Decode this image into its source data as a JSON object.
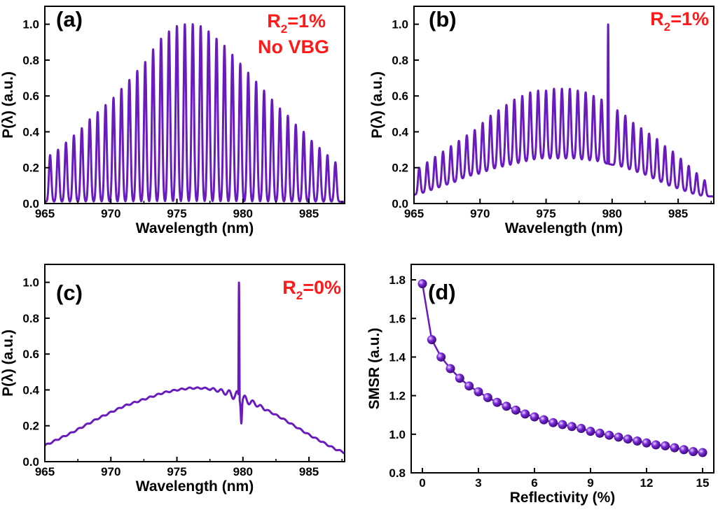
{
  "colors": {
    "line": "#6a1bbd",
    "annotation": "#ff1a1a",
    "marker": "#7a2ad8"
  },
  "chart_data": [
    {
      "id": "a",
      "type": "line",
      "panel_label": "(a)",
      "xlabel": "Wavelength (nm)",
      "ylabel": "P(λ) (a.u.)",
      "xlim": [
        965,
        987.7
      ],
      "ylim": [
        0,
        1.1
      ],
      "xticks": [
        965,
        970,
        975,
        980,
        985
      ],
      "yticks": [
        0.0,
        0.2,
        0.4,
        0.6,
        0.8,
        1.0
      ],
      "annotations": [
        {
          "text": "R",
          "sub": "2",
          "rest": "=1%"
        },
        {
          "text": "No VBG"
        }
      ],
      "series": [
        {
          "name": "spectrum",
          "model": "comb",
          "peak_positions": [
            965.4,
            966.0,
            966.6,
            967.2,
            967.8,
            968.4,
            969.0,
            969.6,
            970.2,
            970.8,
            971.4,
            972.0,
            972.6,
            973.2,
            973.8,
            974.4,
            975.0,
            975.6,
            976.2,
            976.8,
            977.4,
            978.0,
            978.6,
            979.2,
            979.8,
            980.4,
            981.0,
            981.6,
            982.2,
            982.8,
            983.4,
            984.0,
            984.6,
            985.2,
            985.8,
            986.4,
            987.0
          ],
          "peak_heights": [
            0.27,
            0.3,
            0.34,
            0.38,
            0.42,
            0.47,
            0.51,
            0.55,
            0.59,
            0.64,
            0.69,
            0.74,
            0.79,
            0.86,
            0.92,
            0.96,
            0.99,
            1.0,
            1.0,
            0.99,
            0.96,
            0.92,
            0.88,
            0.83,
            0.78,
            0.73,
            0.68,
            0.63,
            0.58,
            0.53,
            0.49,
            0.44,
            0.4,
            0.35,
            0.31,
            0.27,
            0.23
          ],
          "valley_min": 0.01
        }
      ]
    },
    {
      "id": "b",
      "type": "line",
      "panel_label": "(b)",
      "xlabel": "Wavelength (nm)",
      "ylabel": "P(λ) (a.u.)",
      "xlim": [
        965,
        987.7
      ],
      "ylim": [
        0,
        1.1
      ],
      "xticks": [
        965,
        970,
        975,
        980,
        985
      ],
      "yticks": [
        0.0,
        0.2,
        0.4,
        0.6,
        0.8,
        1.0
      ],
      "annotations": [
        {
          "text": "R",
          "sub": "2",
          "rest": "=1%"
        }
      ],
      "series": [
        {
          "name": "spectrum",
          "model": "comb-with-spike",
          "peak_positions": [
            965.4,
            966.0,
            966.6,
            967.2,
            967.8,
            968.4,
            969.0,
            969.6,
            970.2,
            970.8,
            971.4,
            972.0,
            972.6,
            973.2,
            973.8,
            974.4,
            975.0,
            975.6,
            976.2,
            976.8,
            977.4,
            978.0,
            978.6,
            979.2,
            980.4,
            981.0,
            981.6,
            982.2,
            982.8,
            983.4,
            984.0,
            984.6,
            985.2,
            985.8,
            986.4,
            987.0
          ],
          "peak_heights": [
            0.2,
            0.23,
            0.26,
            0.29,
            0.32,
            0.35,
            0.38,
            0.41,
            0.45,
            0.49,
            0.52,
            0.55,
            0.58,
            0.6,
            0.62,
            0.63,
            0.63,
            0.64,
            0.64,
            0.64,
            0.63,
            0.62,
            0.6,
            0.58,
            0.52,
            0.49,
            0.45,
            0.42,
            0.39,
            0.36,
            0.32,
            0.29,
            0.25,
            0.21,
            0.17,
            0.13
          ],
          "valley_heights": [
            0.05,
            0.07,
            0.08,
            0.1,
            0.11,
            0.13,
            0.15,
            0.16,
            0.17,
            0.19,
            0.2,
            0.21,
            0.22,
            0.23,
            0.24,
            0.25,
            0.25,
            0.25,
            0.25,
            0.25,
            0.25,
            0.24,
            0.24,
            0.23,
            0.21,
            0.2,
            0.18,
            0.17,
            0.15,
            0.13,
            0.11,
            0.09,
            0.08,
            0.06,
            0.05,
            0.04
          ],
          "spike": {
            "x": 979.7,
            "y": 1.0
          }
        }
      ]
    },
    {
      "id": "c",
      "type": "line",
      "panel_label": "(c)",
      "xlabel": "Wavelength (nm)",
      "ylabel": "P(λ) (a.u.)",
      "xlim": [
        965,
        987.7
      ],
      "ylim": [
        0,
        1.1
      ],
      "xticks": [
        965,
        970,
        975,
        980,
        985
      ],
      "yticks": [
        0.0,
        0.2,
        0.4,
        0.6,
        0.8,
        1.0
      ],
      "annotations": [
        {
          "text": "R",
          "sub": "2",
          "rest": "=0%"
        }
      ],
      "series": [
        {
          "name": "spectrum",
          "model": "envelope-with-spike",
          "x": [
            965,
            967,
            969,
            971,
            973,
            974,
            975,
            976,
            977,
            978,
            979,
            980,
            981,
            982,
            983,
            985,
            987,
            987.7
          ],
          "y": [
            0.09,
            0.16,
            0.24,
            0.31,
            0.36,
            0.385,
            0.4,
            0.41,
            0.41,
            0.4,
            0.38,
            0.35,
            0.32,
            0.28,
            0.24,
            0.15,
            0.07,
            0.05
          ],
          "spike": {
            "x": 979.7,
            "y": 1.0,
            "dip": 0.24
          },
          "ripple_range": [
            977.5,
            981.8
          ]
        }
      ]
    },
    {
      "id": "d",
      "type": "scatter",
      "panel_label": "(d)",
      "xlabel": "Reflectivity (%)",
      "ylabel": "SMSR (a.u.)",
      "xlim": [
        -0.6,
        15.6
      ],
      "ylim": [
        0.8,
        1.88
      ],
      "xticks": [
        0,
        3,
        6,
        9,
        12,
        15
      ],
      "yticks": [
        0.8,
        1.0,
        1.2,
        1.4,
        1.6,
        1.8
      ],
      "series": [
        {
          "name": "SMSR",
          "x": [
            0,
            0.5,
            1,
            1.5,
            2,
            2.5,
            3,
            3.5,
            4,
            4.5,
            5,
            5.5,
            6,
            6.5,
            7,
            7.5,
            8,
            8.5,
            9,
            9.5,
            10,
            10.5,
            11,
            11.5,
            12,
            12.5,
            13,
            13.5,
            14,
            14.5,
            15
          ],
          "y": [
            1.78,
            1.49,
            1.4,
            1.34,
            1.29,
            1.25,
            1.22,
            1.19,
            1.165,
            1.145,
            1.125,
            1.105,
            1.09,
            1.075,
            1.06,
            1.05,
            1.04,
            1.03,
            1.015,
            1.005,
            0.995,
            0.985,
            0.975,
            0.965,
            0.955,
            0.945,
            0.94,
            0.93,
            0.92,
            0.91,
            0.905
          ]
        }
      ]
    }
  ]
}
